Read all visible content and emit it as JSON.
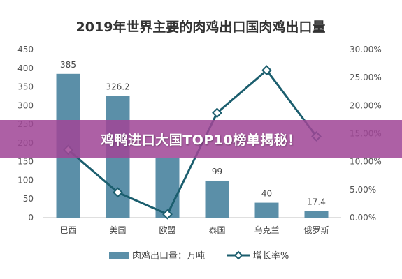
{
  "banner": {
    "text": "鸡鸭进口大国TOP10榜单揭秘！"
  },
  "chart_data": {
    "type": "bar",
    "title": "2019年世界主要的肉鸡出口国肉鸡出口量",
    "categories": [
      "巴西",
      "美国",
      "欧盟",
      "泰国",
      "乌克兰",
      "俄罗斯"
    ],
    "series": [
      {
        "name": "肉鸡出口量：万吨",
        "type": "bar",
        "axis": "left",
        "values": [
          385,
          326.2,
          160,
          99,
          40,
          17.4
        ],
        "labels": [
          "385",
          "326.2",
          "",
          "99",
          "40",
          "17.4"
        ]
      },
      {
        "name": "增长率%",
        "type": "line",
        "axis": "right",
        "values": [
          12.1,
          4.5,
          0.6,
          18.7,
          26.3,
          14.5
        ]
      }
    ],
    "ylim_left": [
      0,
      450
    ],
    "yticks_left": [
      "0",
      "50",
      "100",
      "150",
      "200",
      "250",
      "300",
      "350",
      "400",
      "450"
    ],
    "ylim_right": [
      0,
      30
    ],
    "yticks_right": [
      "0.00%",
      "5.00%",
      "10.00%",
      "15.00%",
      "20.00%",
      "25.00%",
      "30.00%"
    ],
    "legend": "bottom",
    "grid": false,
    "colors": {
      "bar": "#5b8fa8",
      "line": "#1b5e6e",
      "marker_fill": "#ffffff"
    }
  }
}
